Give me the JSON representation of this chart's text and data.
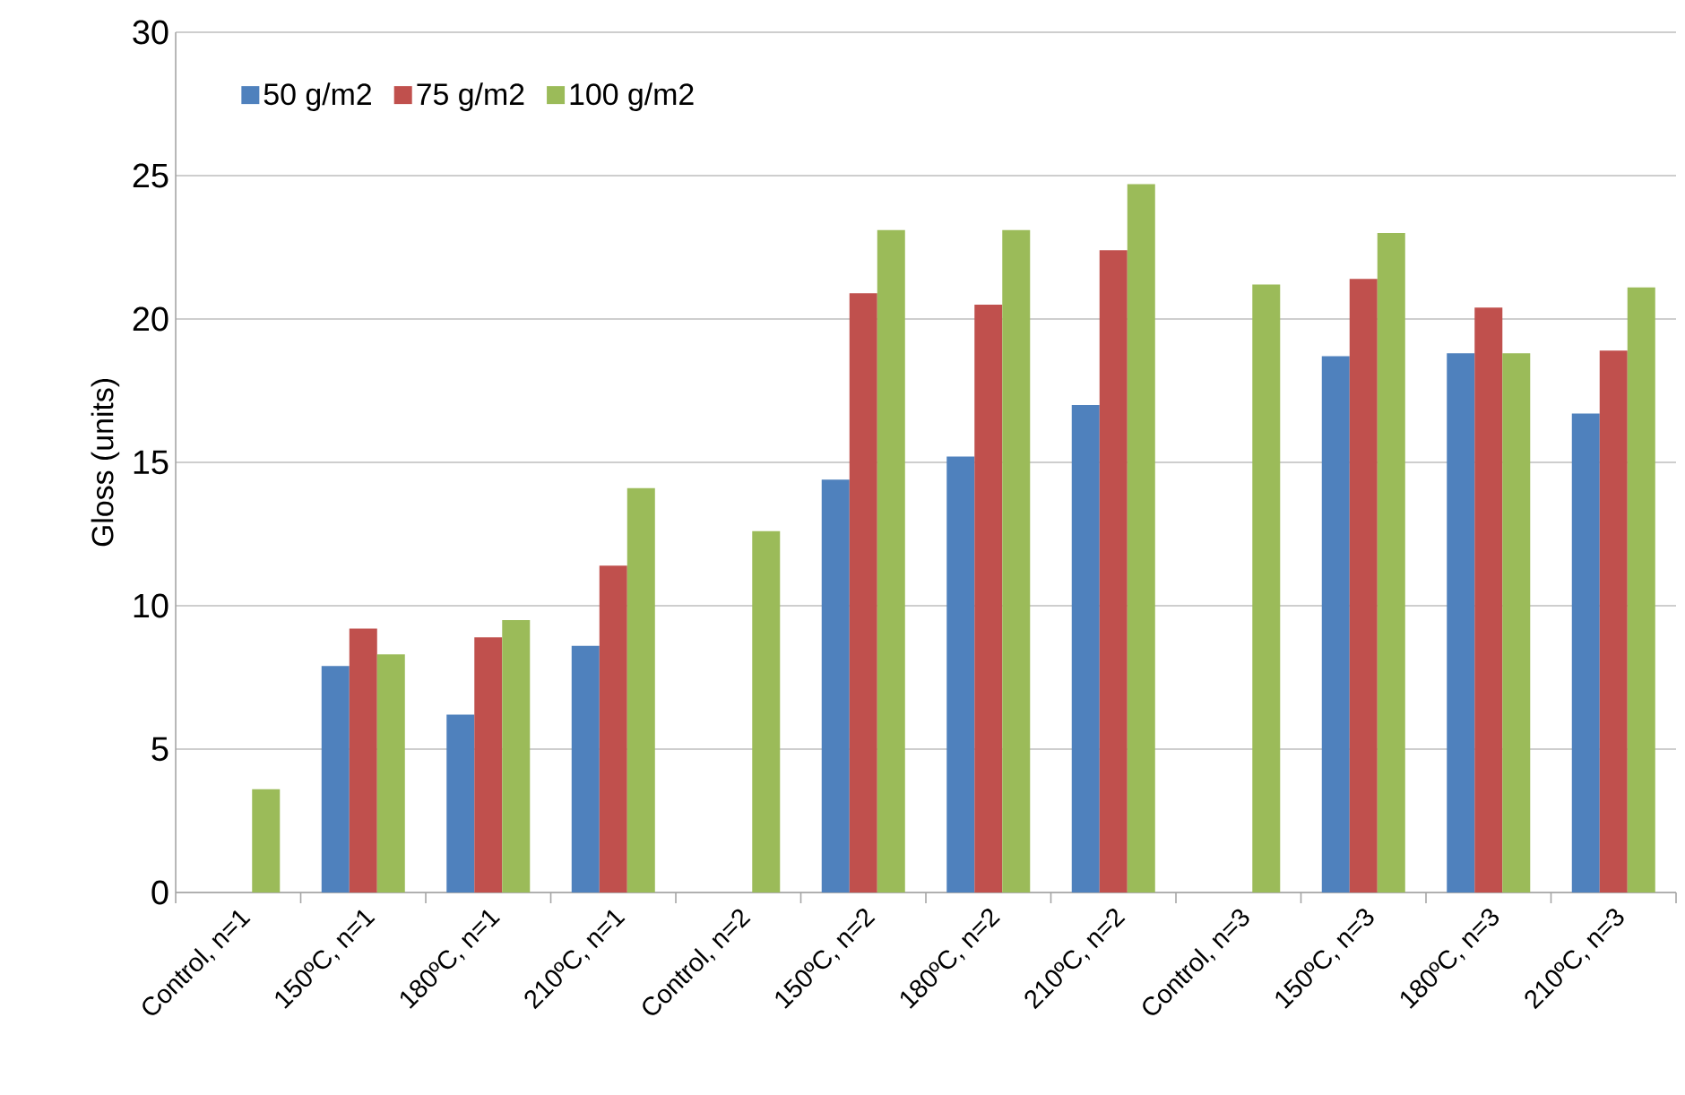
{
  "chart_data": {
    "type": "bar",
    "ylabel": "Gloss  (units)",
    "categories": [
      "Control, n=1",
      "150ºC, n=1",
      "180ºC, n=1",
      "210ºC, n=1",
      "Control, n=2",
      "150ºC, n=2",
      "180ºC, n=2",
      "210ºC, n=2",
      "Control, n=3",
      "150ºC, n=3",
      "180ºC, n=3",
      "210ºC, n=3"
    ],
    "series": [
      {
        "name": "50 g/m2",
        "color": "#4f81bd",
        "values": [
          null,
          7.9,
          6.2,
          8.6,
          null,
          14.4,
          15.2,
          17.0,
          null,
          18.7,
          18.8,
          16.7
        ]
      },
      {
        "name": "75 g/m2",
        "color": "#c0504d",
        "values": [
          null,
          9.2,
          8.9,
          11.4,
          null,
          20.9,
          20.5,
          22.4,
          null,
          21.4,
          20.4,
          18.9
        ]
      },
      {
        "name": "100 g/m2",
        "color": "#9bbb59",
        "values": [
          3.6,
          8.3,
          9.5,
          14.1,
          12.6,
          23.1,
          23.1,
          24.7,
          21.2,
          23.0,
          18.8,
          21.1
        ]
      }
    ],
    "ylim": [
      0,
      30
    ],
    "yticks": [
      0,
      5,
      10,
      15,
      20,
      25,
      30
    ],
    "grid": "y",
    "legend": "top left"
  }
}
